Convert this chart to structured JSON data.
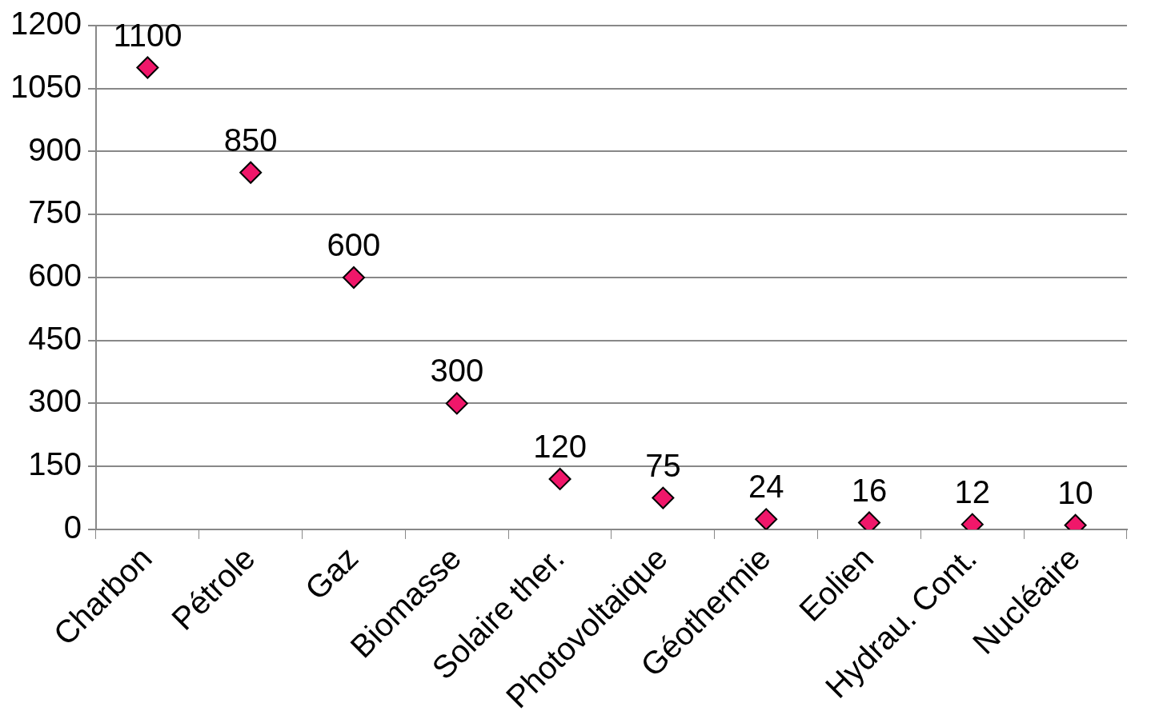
{
  "chart_data": {
    "type": "scatter",
    "categories": [
      "Charbon",
      "Pétrole",
      "Gaz",
      "Biomasse",
      "Solaire ther.",
      "Photovoltaique",
      "Géothermie",
      "Eolien",
      "Hydrau. Cont.",
      "Nucléaire"
    ],
    "series": [
      {
        "color": "#f0176a",
        "values": [
          1100,
          850,
          600,
          300,
          120,
          75,
          24,
          16,
          12,
          10
        ]
      }
    ],
    "ylim": [
      0,
      1200
    ],
    "yticks": [
      0,
      150,
      300,
      450,
      600,
      750,
      900,
      1050,
      1200
    ],
    "grid": "y",
    "legend": false,
    "marker": "diamond",
    "data_labels": true
  }
}
